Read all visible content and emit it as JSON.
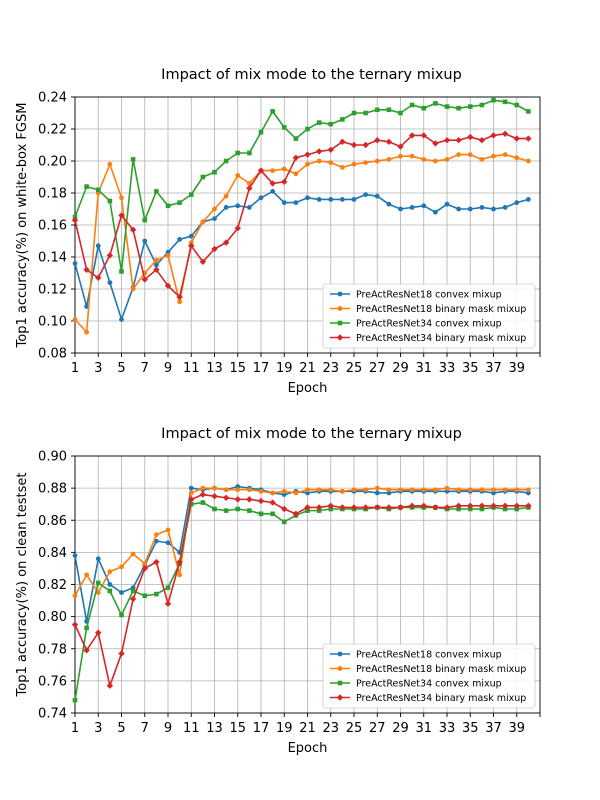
{
  "chart_data": [
    {
      "type": "line",
      "title": "Impact of mix mode to the ternary mixup",
      "xlabel": "Epoch",
      "ylabel": "Top1 accuracy(%) on white-box FGSM",
      "xlim": [
        1,
        41
      ],
      "ylim": [
        0.08,
        0.24
      ],
      "xticks": [
        1,
        3,
        5,
        7,
        9,
        11,
        13,
        15,
        17,
        19,
        21,
        23,
        25,
        27,
        29,
        31,
        33,
        35,
        37,
        39
      ],
      "yticks": [
        0.08,
        0.1,
        0.12,
        0.14,
        0.16,
        0.18,
        0.2,
        0.22,
        0.24
      ],
      "ytick_labels": [
        "0.08",
        "0.10",
        "0.12",
        "0.14",
        "0.16",
        "0.18",
        "0.20",
        "0.22",
        "0.24"
      ],
      "grid": true,
      "legend_position": "lower-right",
      "x": [
        1,
        2,
        3,
        4,
        5,
        6,
        7,
        8,
        9,
        10,
        11,
        12,
        13,
        14,
        15,
        16,
        17,
        18,
        19,
        20,
        21,
        22,
        23,
        24,
        25,
        26,
        27,
        28,
        29,
        30,
        31,
        32,
        33,
        34,
        35,
        36,
        37,
        38,
        39,
        40
      ],
      "series": [
        {
          "name": "PreActResNet18 convex mixup",
          "color": "#1f77b4",
          "marker": "circle",
          "values": [
            0.136,
            0.109,
            0.147,
            0.124,
            0.101,
            0.121,
            0.15,
            0.135,
            0.143,
            0.151,
            0.153,
            0.162,
            0.164,
            0.171,
            0.172,
            0.171,
            0.177,
            0.181,
            0.174,
            0.174,
            0.177,
            0.176,
            0.176,
            0.176,
            0.176,
            0.179,
            0.178,
            0.173,
            0.17,
            0.171,
            0.172,
            0.168,
            0.173,
            0.17,
            0.17,
            0.171,
            0.17,
            0.171,
            0.174,
            0.176
          ]
        },
        {
          "name": "PreActResNet18 binary mask mixup",
          "color": "#ff7f0e",
          "marker": "circle",
          "values": [
            0.101,
            0.093,
            0.18,
            0.198,
            0.177,
            0.12,
            0.13,
            0.138,
            0.141,
            0.112,
            0.149,
            0.162,
            0.17,
            0.178,
            0.191,
            0.186,
            0.194,
            0.194,
            0.195,
            0.192,
            0.198,
            0.2,
            0.199,
            0.196,
            0.198,
            0.199,
            0.2,
            0.201,
            0.203,
            0.203,
            0.201,
            0.2,
            0.201,
            0.204,
            0.204,
            0.201,
            0.203,
            0.204,
            0.202,
            0.2
          ]
        },
        {
          "name": "PreActResNet34 convex mixup",
          "color": "#2ca02c",
          "marker": "square",
          "values": [
            0.165,
            0.184,
            0.182,
            0.175,
            0.131,
            0.201,
            0.163,
            0.181,
            0.172,
            0.174,
            0.179,
            0.19,
            0.193,
            0.2,
            0.205,
            0.205,
            0.218,
            0.231,
            0.221,
            0.214,
            0.22,
            0.224,
            0.223,
            0.226,
            0.23,
            0.23,
            0.232,
            0.232,
            0.23,
            0.235,
            0.233,
            0.236,
            0.234,
            0.233,
            0.234,
            0.235,
            0.238,
            0.237,
            0.235,
            0.231
          ]
        },
        {
          "name": "PreActResNet34 binary mask mixup",
          "color": "#d62728",
          "marker": "diamond",
          "values": [
            0.163,
            0.132,
            0.127,
            0.141,
            0.166,
            0.157,
            0.126,
            0.132,
            0.122,
            0.115,
            0.147,
            0.137,
            0.145,
            0.149,
            0.158,
            0.183,
            0.194,
            0.186,
            0.187,
            0.202,
            0.204,
            0.206,
            0.207,
            0.212,
            0.21,
            0.21,
            0.213,
            0.212,
            0.209,
            0.216,
            0.216,
            0.211,
            0.213,
            0.213,
            0.215,
            0.213,
            0.216,
            0.217,
            0.214,
            0.214
          ]
        }
      ]
    },
    {
      "type": "line",
      "title": "Impact of mix mode to the ternary mixup",
      "xlabel": "Epoch",
      "ylabel": "Top1 accuracy(%) on clean testset",
      "xlim": [
        1,
        41
      ],
      "ylim": [
        0.74,
        0.9
      ],
      "xticks": [
        1,
        3,
        5,
        7,
        9,
        11,
        13,
        15,
        17,
        19,
        21,
        23,
        25,
        27,
        29,
        31,
        33,
        35,
        37,
        39
      ],
      "yticks": [
        0.74,
        0.76,
        0.78,
        0.8,
        0.82,
        0.84,
        0.86,
        0.88,
        0.9
      ],
      "ytick_labels": [
        "0.74",
        "0.76",
        "0.78",
        "0.80",
        "0.82",
        "0.84",
        "0.86",
        "0.88",
        "0.90"
      ],
      "grid": true,
      "legend_position": "lower-right",
      "x": [
        1,
        2,
        3,
        4,
        5,
        6,
        7,
        8,
        9,
        10,
        11,
        12,
        13,
        14,
        15,
        16,
        17,
        18,
        19,
        20,
        21,
        22,
        23,
        24,
        25,
        26,
        27,
        28,
        29,
        30,
        31,
        32,
        33,
        34,
        35,
        36,
        37,
        38,
        39,
        40
      ],
      "series": [
        {
          "name": "PreActResNet18 convex mixup",
          "color": "#1f77b4",
          "marker": "circle",
          "values": [
            0.838,
            0.797,
            0.836,
            0.82,
            0.815,
            0.818,
            0.832,
            0.847,
            0.846,
            0.84,
            0.88,
            0.879,
            0.88,
            0.879,
            0.881,
            0.88,
            0.879,
            0.877,
            0.876,
            0.878,
            0.877,
            0.878,
            0.878,
            0.878,
            0.878,
            0.878,
            0.877,
            0.877,
            0.878,
            0.878,
            0.878,
            0.878,
            0.878,
            0.878,
            0.878,
            0.878,
            0.877,
            0.878,
            0.878,
            0.877
          ]
        },
        {
          "name": "PreActResNet18 binary mask mixup",
          "color": "#ff7f0e",
          "marker": "circle",
          "values": [
            0.813,
            0.826,
            0.815,
            0.828,
            0.831,
            0.839,
            0.833,
            0.851,
            0.854,
            0.826,
            0.877,
            0.88,
            0.88,
            0.879,
            0.879,
            0.879,
            0.878,
            0.877,
            0.878,
            0.877,
            0.879,
            0.879,
            0.879,
            0.878,
            0.879,
            0.879,
            0.88,
            0.879,
            0.879,
            0.879,
            0.879,
            0.879,
            0.88,
            0.879,
            0.879,
            0.879,
            0.879,
            0.879,
            0.879,
            0.879
          ]
        },
        {
          "name": "PreActResNet34 convex mixup",
          "color": "#2ca02c",
          "marker": "square",
          "values": [
            0.748,
            0.793,
            0.821,
            0.816,
            0.801,
            0.816,
            0.813,
            0.814,
            0.818,
            0.833,
            0.87,
            0.871,
            0.867,
            0.866,
            0.867,
            0.866,
            0.864,
            0.864,
            0.859,
            0.863,
            0.866,
            0.866,
            0.867,
            0.867,
            0.867,
            0.867,
            0.868,
            0.867,
            0.868,
            0.868,
            0.868,
            0.868,
            0.867,
            0.867,
            0.867,
            0.867,
            0.868,
            0.867,
            0.867,
            0.868
          ]
        },
        {
          "name": "PreActResNet34 binary mask mixup",
          "color": "#d62728",
          "marker": "diamond",
          "values": [
            0.795,
            0.779,
            0.79,
            0.757,
            0.777,
            0.811,
            0.83,
            0.834,
            0.808,
            0.834,
            0.873,
            0.876,
            0.875,
            0.874,
            0.873,
            0.873,
            0.872,
            0.871,
            0.867,
            0.864,
            0.868,
            0.868,
            0.869,
            0.868,
            0.868,
            0.868,
            0.868,
            0.868,
            0.868,
            0.869,
            0.869,
            0.868,
            0.868,
            0.869,
            0.869,
            0.869,
            0.869,
            0.869,
            0.869,
            0.869
          ]
        }
      ]
    }
  ]
}
